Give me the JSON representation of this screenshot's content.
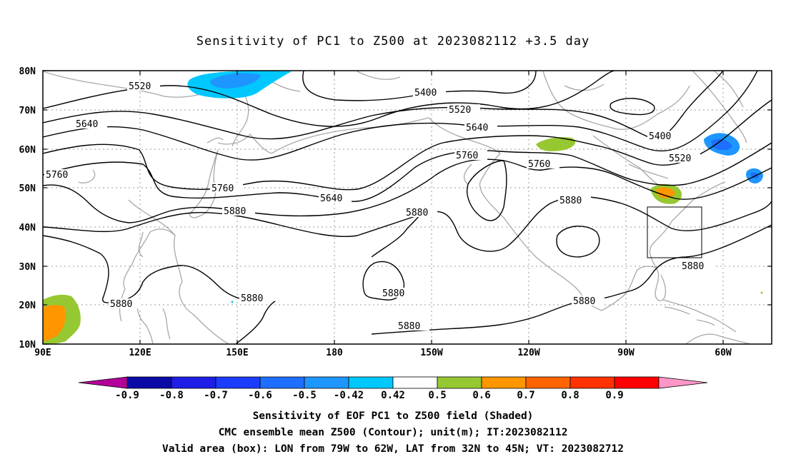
{
  "title": "Sensitivity of PC1 to Z500 at 2023082112 +3.5 day",
  "axes": {
    "lat_labels": [
      "80N",
      "70N",
      "60N",
      "50N",
      "40N",
      "30N",
      "20N",
      "10N"
    ],
    "lon_labels": [
      "90E",
      "120E",
      "150E",
      "180",
      "150W",
      "120W",
      "90W",
      "60W"
    ]
  },
  "contour_labels": [
    "5520",
    "5400",
    "5520",
    "5640",
    "5400",
    "5520",
    "5640",
    "5760",
    "5760",
    "5760",
    "5640",
    "5880",
    "5880",
    "5880",
    "5880",
    "5880",
    "5880",
    "5880",
    "5880",
    "5880"
  ],
  "colorbar": {
    "labels": [
      "-0.9",
      "-0.8",
      "-0.7",
      "-0.6",
      "-0.5",
      "-0.42",
      "0.42",
      "0.5",
      "0.6",
      "0.7",
      "0.8",
      "0.9"
    ],
    "colors": [
      "#b4009a",
      "#0a0aa6",
      "#1e1ee6",
      "#1c3cff",
      "#1e6eff",
      "#1e96ff",
      "#00c8ff",
      "#ffffff",
      "#96c832",
      "#ff9600",
      "#ff6400",
      "#ff3200",
      "#ff0000",
      "#ff96c8"
    ]
  },
  "footer": {
    "line1": "Sensitivity of EOF PC1 to Z500 field (Shaded)",
    "line2": "CMC ensemble mean Z500 (Contour); unit(m); IT:2023082112",
    "line3": "Valid area (box): LON from 79W to 62W, LAT from 32N to 45N; VT: 2023082712"
  }
}
